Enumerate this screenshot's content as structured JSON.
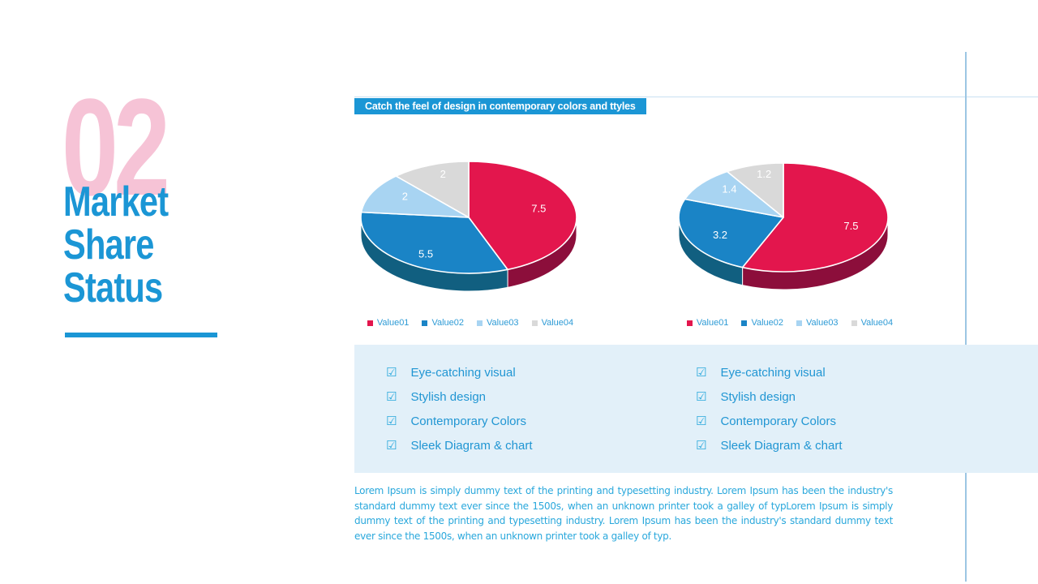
{
  "slide": {
    "section_number": "02",
    "title_lines": [
      "Market",
      "Share",
      "Status"
    ],
    "banner_text": "Catch the feel of design in contemporary colors and ttyles",
    "features": [
      "Eye-catching visual",
      "Stylish design",
      "Contemporary Colors",
      "Sleek Diagram & chart"
    ],
    "body_text": "Lorem Ipsum is simply dummy text of the printing and typesetting industry. Lorem Ipsum has been the industry's standard dummy text ever since the 1500s, when an unknown printer took a galley of typLorem Ipsum is simply dummy text of the printing and typesetting industry. Lorem Ipsum has been the industry's standard dummy text ever since the 1500s, when an unknown printer took a galley of typ."
  },
  "icons": {
    "check": "☑"
  },
  "colors": {
    "accent_blue": "#1b96d5",
    "accent_pink": "#f6c3d6",
    "panel_blue": "#e2f0f9",
    "text_blue": "#2aa8dc",
    "legend_text": "#2e9bd6",
    "pie_red": "#e3164d",
    "pie_blue": "#1a84c6",
    "pie_lightblue": "#a8d4f2",
    "pie_gray": "#d9d9d9"
  },
  "chart_data": [
    {
      "type": "pie",
      "style": "3d",
      "labels": [
        "Value01",
        "Value02",
        "Value03",
        "Value04"
      ],
      "values": [
        7.5,
        5.5,
        2,
        2
      ],
      "data_labels": [
        "7.5",
        "5.5",
        "2",
        "2"
      ],
      "colors": [
        "#e3164d",
        "#1a84c6",
        "#a8d4f2",
        "#d9d9d9"
      ],
      "wall_colors": [
        "#8c0e3b",
        "#115f80",
        "#8fbedc",
        "#b0b0b0"
      ],
      "legend_position": "bottom",
      "start_angle_deg": 0,
      "direction": "clockwise"
    },
    {
      "type": "pie",
      "style": "3d",
      "labels": [
        "Value01",
        "Value02",
        "Value03",
        "Value04"
      ],
      "values": [
        7.5,
        3.2,
        1.4,
        1.2
      ],
      "data_labels": [
        "7.5",
        "3.2",
        "1.4",
        "1.2"
      ],
      "colors": [
        "#e3164d",
        "#1a84c6",
        "#a8d4f2",
        "#d9d9d9"
      ],
      "wall_colors": [
        "#8c0e3b",
        "#115f80",
        "#8fbedc",
        "#b0b0b0"
      ],
      "legend_position": "bottom",
      "start_angle_deg": 0,
      "direction": "clockwise"
    }
  ]
}
